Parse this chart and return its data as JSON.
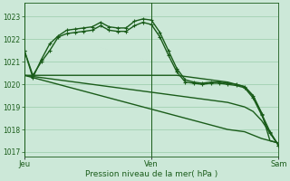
{
  "background_color": "#cce8d8",
  "grid_color": "#99ccaa",
  "line_color": "#1a5c1a",
  "text_color": "#1a5c1a",
  "xlabel": "Pression niveau de la mer( hPa )",
  "ylim": [
    1016.8,
    1023.6
  ],
  "yticks": [
    1017,
    1018,
    1019,
    1020,
    1021,
    1022,
    1023
  ],
  "xtick_labels": [
    "Jeu",
    "Ven",
    "Sam"
  ],
  "series_with_markers": [
    [
      1021.5,
      1020.3,
      1021.1,
      1021.8,
      1022.15,
      1022.4,
      1022.45,
      1022.5,
      1022.55,
      1022.75,
      1022.55,
      1022.5,
      1022.5,
      1022.8,
      1022.9,
      1022.85,
      1022.3,
      1021.5,
      1020.7,
      1020.2,
      1020.1,
      1020.05,
      1020.1,
      1020.1,
      1020.05,
      1020.0,
      1019.9,
      1019.5,
      1018.7,
      1017.9,
      1017.3
    ],
    [
      1021.5,
      1020.4,
      1021.0,
      1021.5,
      1022.1,
      1022.25,
      1022.3,
      1022.35,
      1022.4,
      1022.6,
      1022.4,
      1022.35,
      1022.35,
      1022.6,
      1022.75,
      1022.65,
      1022.1,
      1021.3,
      1020.55,
      1020.1,
      1020.05,
      1020.0,
      1020.05,
      1020.05,
      1020.0,
      1019.95,
      1019.85,
      1019.4,
      1018.65,
      1017.85,
      1017.3
    ]
  ],
  "series_plain": [
    [
      1020.4,
      1020.4,
      1020.4,
      1020.4,
      1020.4,
      1020.4,
      1020.4,
      1020.4,
      1020.4,
      1020.4,
      1020.4,
      1020.4,
      1020.4,
      1020.4,
      1020.4,
      1020.4,
      1020.4,
      1020.4,
      1020.4,
      1020.35,
      1020.3,
      1020.25,
      1020.2,
      1020.15,
      1020.1,
      1020.0,
      1019.9,
      1019.5,
      1018.75,
      1017.5,
      1017.4
    ],
    [
      1020.4,
      1020.35,
      1020.3,
      1020.25,
      1020.2,
      1020.15,
      1020.1,
      1020.05,
      1020.0,
      1019.95,
      1019.9,
      1019.85,
      1019.8,
      1019.75,
      1019.7,
      1019.65,
      1019.6,
      1019.55,
      1019.5,
      1019.45,
      1019.4,
      1019.35,
      1019.3,
      1019.25,
      1019.2,
      1019.1,
      1019.0,
      1018.8,
      1018.4,
      1017.85,
      1017.3
    ],
    [
      1020.4,
      1020.3,
      1020.2,
      1020.1,
      1020.0,
      1019.9,
      1019.8,
      1019.7,
      1019.6,
      1019.5,
      1019.4,
      1019.3,
      1019.2,
      1019.1,
      1019.0,
      1018.9,
      1018.8,
      1018.7,
      1018.6,
      1018.5,
      1018.4,
      1018.3,
      1018.2,
      1018.1,
      1018.0,
      1017.95,
      1017.9,
      1017.75,
      1017.6,
      1017.5,
      1017.4
    ]
  ],
  "n_points": 31,
  "jeu_idx": 0,
  "ven_idx": 15,
  "sam_idx": 30,
  "marker": "+",
  "marker_size": 3.5,
  "linewidth": 1.0
}
